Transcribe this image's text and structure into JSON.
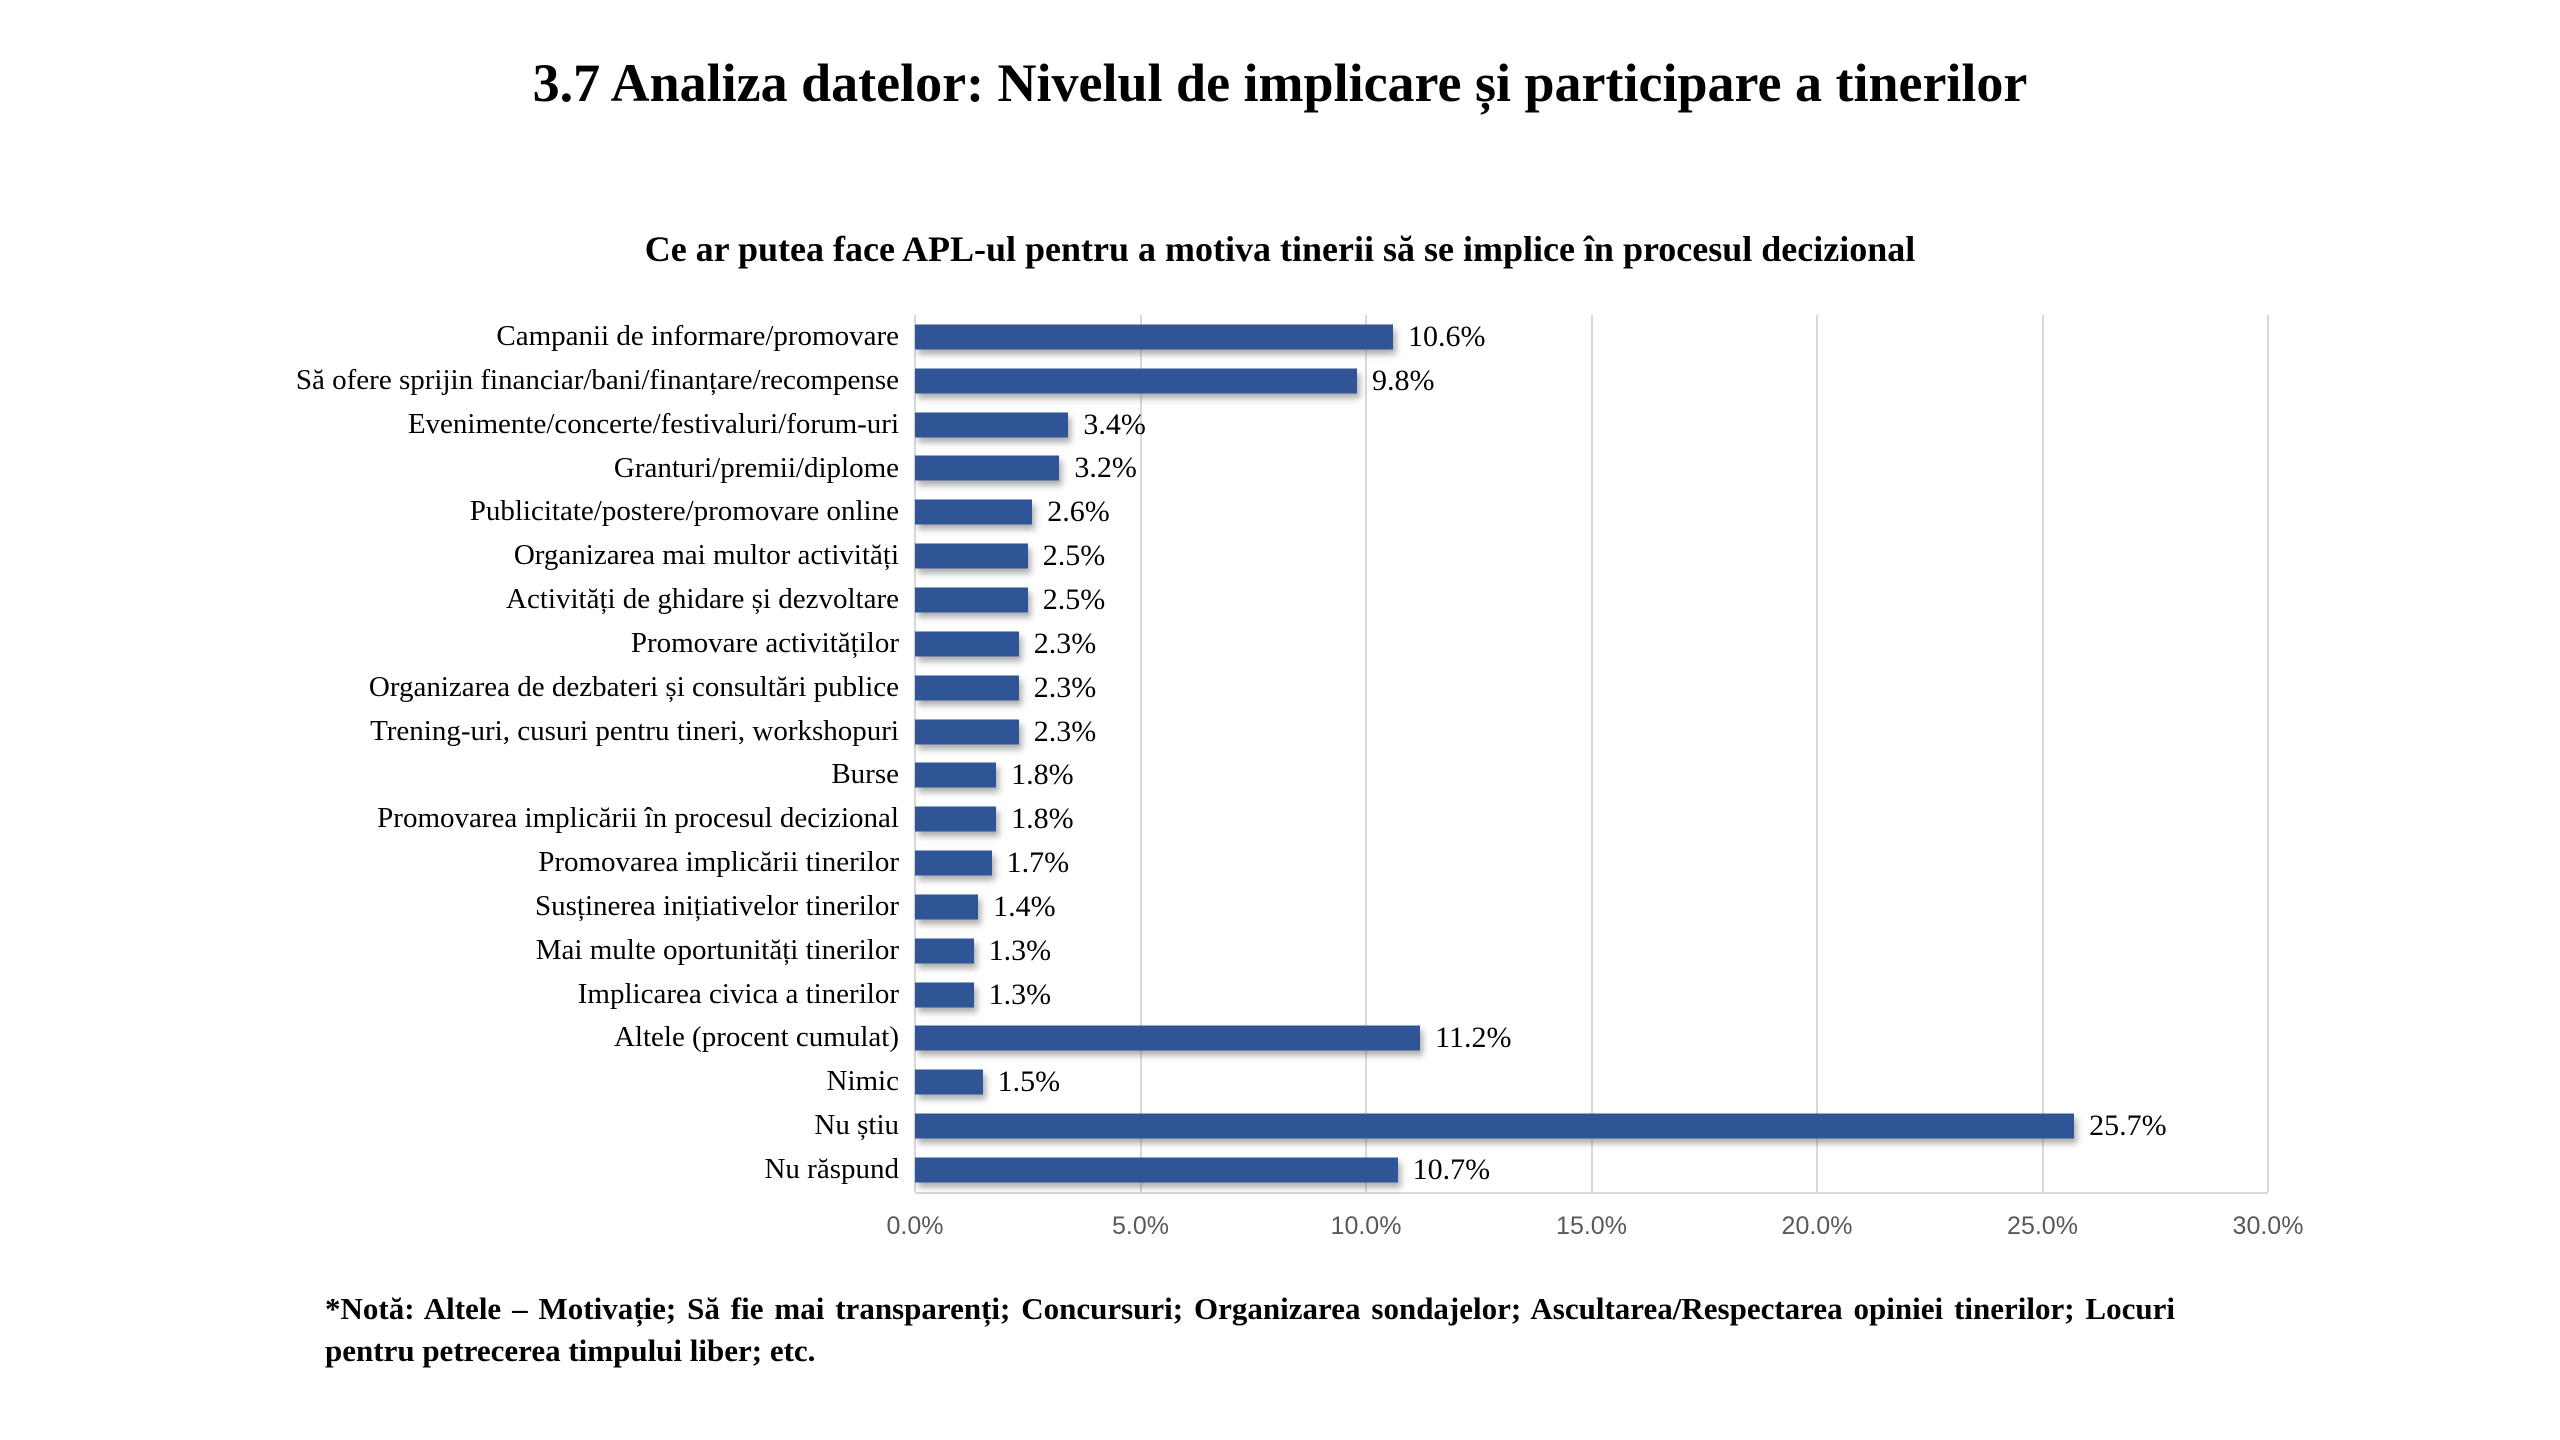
{
  "title": "3.7 Analiza datelor: Nivelul de implicare și participare a tinerilor",
  "subtitle": "Ce ar putea face APL-ul  pentru a motiva tinerii să se implice în procesul decizional",
  "note": "*Notă: Altele – Motivație; Să fie mai transparenți; Concursuri; Organizarea sondajelor; Ascultarea/Respectarea opiniei tinerilor; Locuri pentru petrecerea timpului liber; etc.",
  "chart_data": {
    "type": "bar",
    "orientation": "horizontal",
    "title": "Ce ar putea face APL-ul  pentru a motiva tinerii să se implice în procesul decizional",
    "categories": [
      "Campanii de informare/promovare",
      "Să ofere sprijin financiar/bani/finanțare/recompense",
      "Evenimente/concerte/festivaluri/forum-uri",
      "Granturi/premii/diplome",
      "Publicitate/postere/promovare online",
      "Organizarea mai multor activități",
      "Activități de ghidare și dezvoltare",
      "Promovare activităților",
      "Organizarea de dezbateri și consultări publice",
      "Trening-uri, cusuri pentru tineri, workshopuri",
      "Burse",
      "Promovarea implicării în procesul decizional",
      "Promovarea implicării tinerilor",
      "Susținerea inițiativelor tinerilor",
      "Mai multe oportunități tinerilor",
      "Implicarea civica a tinerilor",
      "Altele (procent cumulat)",
      "Nimic",
      "Nu știu",
      "Nu răspund"
    ],
    "values": [
      10.6,
      9.8,
      3.4,
      3.2,
      2.6,
      2.5,
      2.5,
      2.3,
      2.3,
      2.3,
      1.8,
      1.8,
      1.7,
      1.4,
      1.3,
      1.3,
      11.2,
      1.5,
      25.7,
      10.7
    ],
    "value_labels": [
      "10.6%",
      "9.8%",
      "3.4%",
      "3.2%",
      "2.6%",
      "2.5%",
      "2.5%",
      "2.3%",
      "2.3%",
      "2.3%",
      "1.8%",
      "1.8%",
      "1.7%",
      "1.4%",
      "1.3%",
      "1.3%",
      "11.2%",
      "1.5%",
      "25.7%",
      "10.7%"
    ],
    "x_ticks": [
      "0.0%",
      "5.0%",
      "10.0%",
      "15.0%",
      "20.0%",
      "25.0%",
      "30.0%"
    ],
    "xlim": [
      0,
      30
    ],
    "xlabel": "",
    "ylabel": "",
    "grid": true,
    "legend": false,
    "bar_color": "#2f5597",
    "gridline_color": "#d9d9d9",
    "tick_label_color": "#595959"
  }
}
